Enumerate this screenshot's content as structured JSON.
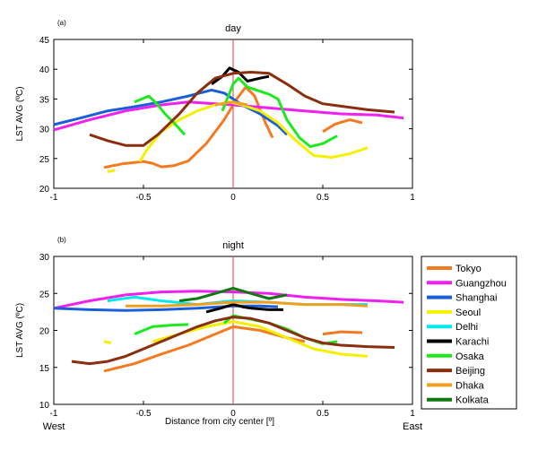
{
  "chart_data": [
    {
      "type": "line",
      "panel_label": "(a)",
      "title": "day",
      "ylabel": "LST AVG (ºC)",
      "xlabel": "",
      "xlim": [
        -1,
        1
      ],
      "ylim": [
        20,
        45
      ],
      "xticks": [
        "-1",
        "-0.5",
        "0",
        "0.5",
        "1"
      ],
      "yticks": [
        "20",
        "25",
        "30",
        "35",
        "40",
        "45"
      ],
      "vline_x": 0,
      "series": [
        {
          "name": "Tokyo",
          "color": "#f47a22",
          "segments": [
            [
              [
                -0.72,
                23.5
              ],
              [
                -0.62,
                24.1
              ],
              [
                -0.5,
                24.5
              ],
              [
                -0.45,
                24.2
              ],
              [
                -0.4,
                23.6
              ],
              [
                -0.33,
                23.8
              ],
              [
                -0.25,
                24.6
              ],
              [
                -0.15,
                27.5
              ],
              [
                -0.05,
                31.5
              ],
              [
                0.02,
                35
              ],
              [
                0.07,
                37
              ],
              [
                0.12,
                35.5
              ],
              [
                0.18,
                31
              ],
              [
                0.22,
                28.5
              ]
            ],
            [
              [
                0.5,
                29.5
              ],
              [
                0.57,
                30.8
              ],
              [
                0.65,
                31.5
              ],
              [
                0.72,
                31
              ]
            ]
          ]
        },
        {
          "name": "Guangzhou",
          "color": "#f020f0",
          "segments": [
            [
              [
                -1,
                29.8
              ],
              [
                -0.8,
                31.5
              ],
              [
                -0.6,
                33
              ],
              [
                -0.4,
                34
              ],
              [
                -0.25,
                34.5
              ],
              [
                -0.1,
                34.2
              ],
              [
                0,
                34
              ],
              [
                0.2,
                33.5
              ],
              [
                0.4,
                33
              ],
              [
                0.6,
                32.5
              ],
              [
                0.8,
                32.3
              ],
              [
                0.95,
                31.8
              ]
            ]
          ]
        },
        {
          "name": "Shanghai",
          "color": "#1a5fd8",
          "segments": [
            [
              [
                -1,
                30.7
              ],
              [
                -0.85,
                31.8
              ],
              [
                -0.7,
                33
              ],
              [
                -0.55,
                33.7
              ],
              [
                -0.4,
                34.5
              ],
              [
                -0.25,
                35.5
              ],
              [
                -0.12,
                36.5
              ],
              [
                -0.05,
                36
              ],
              [
                0.05,
                34
              ],
              [
                0.15,
                32.5
              ],
              [
                0.25,
                30.5
              ],
              [
                0.3,
                29
              ]
            ]
          ]
        },
        {
          "name": "Seoul",
          "color": "#f5f000",
          "segments": [
            [
              [
                -0.7,
                22.8
              ],
              [
                -0.66,
                23
              ]
            ],
            [
              [
                -0.52,
                24.5
              ],
              [
                -0.48,
                26.5
              ],
              [
                -0.4,
                29.5
              ],
              [
                -0.3,
                31.5
              ],
              [
                -0.2,
                33
              ],
              [
                -0.1,
                34
              ],
              [
                -0.02,
                34.5
              ],
              [
                0.05,
                34
              ],
              [
                0.15,
                33
              ],
              [
                0.25,
                31
              ],
              [
                0.35,
                28
              ],
              [
                0.45,
                25.5
              ],
              [
                0.55,
                25.2
              ],
              [
                0.65,
                25.8
              ],
              [
                0.75,
                26.8
              ]
            ]
          ]
        },
        {
          "name": "Delhi",
          "color": "#00e8f0",
          "segments": []
        },
        {
          "name": "Karachi",
          "color": "#000000",
          "segments": [
            [
              [
                -0.12,
                37.5
              ],
              [
                -0.06,
                38.8
              ],
              [
                -0.02,
                40.2
              ],
              [
                0.03,
                39.5
              ],
              [
                0.08,
                38
              ],
              [
                0.15,
                38.5
              ],
              [
                0.2,
                38.8
              ]
            ]
          ]
        },
        {
          "name": "Osaka",
          "color": "#1ee81e",
          "segments": [
            [
              [
                -0.55,
                34.5
              ],
              [
                -0.47,
                35.5
              ],
              [
                -0.42,
                34
              ],
              [
                -0.38,
                32.5
              ],
              [
                -0.33,
                31
              ],
              [
                -0.27,
                29
              ]
            ],
            [
              [
                -0.06,
                33
              ],
              [
                0,
                37.5
              ],
              [
                0.03,
                38.5
              ],
              [
                0.08,
                37
              ],
              [
                0.13,
                36.5
              ],
              [
                0.2,
                35.8
              ],
              [
                0.25,
                35
              ],
              [
                0.3,
                31.5
              ],
              [
                0.37,
                28.5
              ],
              [
                0.43,
                27
              ],
              [
                0.5,
                27.5
              ],
              [
                0.58,
                28.8
              ]
            ]
          ]
        },
        {
          "name": "Beijing",
          "color": "#8b2e0f",
          "segments": [
            [
              [
                -0.8,
                29
              ],
              [
                -0.7,
                28
              ],
              [
                -0.6,
                27.2
              ],
              [
                -0.5,
                27.2
              ],
              [
                -0.42,
                29
              ],
              [
                -0.3,
                32.5
              ],
              [
                -0.2,
                36
              ],
              [
                -0.1,
                38.5
              ],
              [
                0,
                39.3
              ],
              [
                0.1,
                39.5
              ],
              [
                0.2,
                39.3
              ],
              [
                0.3,
                37.5
              ],
              [
                0.4,
                35.5
              ],
              [
                0.5,
                34.2
              ],
              [
                0.6,
                33.8
              ],
              [
                0.75,
                33.2
              ],
              [
                0.9,
                32.8
              ]
            ]
          ]
        },
        {
          "name": "Dhaka",
          "color": "#f0a020",
          "segments": [
            [
              [
                -0.1,
                34
              ],
              [
                0,
                34.5
              ],
              [
                0.08,
                34
              ]
            ]
          ]
        },
        {
          "name": "Kolkata",
          "color": "#107810",
          "segments": []
        }
      ]
    },
    {
      "type": "line",
      "panel_label": "(b)",
      "title": "night",
      "ylabel": "LST AVG (ºC)",
      "xlabel": "Distance from city center [º]",
      "x_left_label": "West",
      "x_right_label": "East",
      "xlim": [
        -1,
        1
      ],
      "ylim": [
        10,
        30
      ],
      "xticks": [
        "-1",
        "-0.5",
        "0",
        "0.5",
        "1"
      ],
      "yticks": [
        "10",
        "15",
        "20",
        "25",
        "30"
      ],
      "vline_x": 0,
      "series": [
        {
          "name": "Tokyo",
          "color": "#f47a22",
          "segments": [
            [
              [
                -0.72,
                14.5
              ],
              [
                -0.55,
                15.5
              ],
              [
                -0.4,
                16.8
              ],
              [
                -0.25,
                18
              ],
              [
                -0.1,
                19.5
              ],
              [
                0,
                20.5
              ],
              [
                0.15,
                20
              ],
              [
                0.3,
                19
              ],
              [
                0.4,
                18.5
              ]
            ],
            [
              [
                0.5,
                19.5
              ],
              [
                0.6,
                19.8
              ],
              [
                0.72,
                19.7
              ]
            ]
          ]
        },
        {
          "name": "Guangzhou",
          "color": "#f020f0",
          "segments": [
            [
              [
                -1,
                23
              ],
              [
                -0.8,
                24
              ],
              [
                -0.6,
                24.8
              ],
              [
                -0.4,
                25.2
              ],
              [
                -0.2,
                25.3
              ],
              [
                0,
                25.2
              ],
              [
                0.2,
                25
              ],
              [
                0.4,
                24.5
              ],
              [
                0.6,
                24.2
              ],
              [
                0.8,
                24
              ],
              [
                0.95,
                23.8
              ]
            ]
          ]
        },
        {
          "name": "Shanghai",
          "color": "#1a5fd8",
          "segments": [
            [
              [
                -1,
                23
              ],
              [
                -0.8,
                22.8
              ],
              [
                -0.6,
                22.7
              ],
              [
                -0.4,
                22.8
              ],
              [
                -0.2,
                23
              ],
              [
                0,
                23.3
              ],
              [
                0.15,
                23.3
              ],
              [
                0.25,
                23.2
              ]
            ]
          ]
        },
        {
          "name": "Seoul",
          "color": "#f5f000",
          "segments": [
            [
              [
                -0.72,
                18.5
              ],
              [
                -0.68,
                18.3
              ]
            ],
            [
              [
                -0.45,
                18.5
              ],
              [
                -0.3,
                19.5
              ],
              [
                -0.15,
                20.5
              ],
              [
                0,
                21.2
              ],
              [
                0.15,
                20.5
              ],
              [
                0.3,
                19
              ],
              [
                0.45,
                17.5
              ],
              [
                0.6,
                16.8
              ],
              [
                0.75,
                16.5
              ]
            ]
          ]
        },
        {
          "name": "Delhi",
          "color": "#00e8f0",
          "segments": [
            [
              [
                -0.7,
                24
              ],
              [
                -0.55,
                24.5
              ],
              [
                -0.4,
                24
              ],
              [
                -0.2,
                23.5
              ],
              [
                0,
                24
              ],
              [
                0.2,
                23.8
              ],
              [
                0.4,
                23.5
              ],
              [
                0.6,
                23.5
              ],
              [
                0.75,
                23.5
              ]
            ]
          ]
        },
        {
          "name": "Karachi",
          "color": "#000000",
          "segments": [
            [
              [
                -0.15,
                22.5
              ],
              [
                -0.07,
                23
              ],
              [
                0,
                23.5
              ],
              [
                0.05,
                23.2
              ],
              [
                0.1,
                23
              ],
              [
                0.2,
                22.8
              ],
              [
                0.28,
                22.8
              ]
            ]
          ]
        },
        {
          "name": "Osaka",
          "color": "#1ee81e",
          "segments": [
            [
              [
                -0.55,
                19.5
              ],
              [
                -0.45,
                20.5
              ],
              [
                -0.35,
                20.7
              ],
              [
                -0.25,
                20.8
              ]
            ],
            [
              [
                -0.05,
                21
              ],
              [
                0,
                22
              ],
              [
                0.1,
                21.5
              ],
              [
                0.2,
                21
              ],
              [
                0.3,
                20.2
              ],
              [
                0.4,
                19
              ],
              [
                0.5,
                18.2
              ],
              [
                0.58,
                18.5
              ]
            ]
          ]
        },
        {
          "name": "Beijing",
          "color": "#8b2e0f",
          "segments": [
            [
              [
                -0.9,
                15.8
              ],
              [
                -0.8,
                15.5
              ],
              [
                -0.7,
                15.8
              ],
              [
                -0.6,
                16.5
              ],
              [
                -0.5,
                17.5
              ],
              [
                -0.4,
                18.5
              ],
              [
                -0.3,
                19.5
              ],
              [
                -0.2,
                20.5
              ],
              [
                -0.1,
                21.3
              ],
              [
                0,
                21.8
              ],
              [
                0.1,
                21.6
              ],
              [
                0.2,
                21
              ],
              [
                0.3,
                20
              ],
              [
                0.4,
                19
              ],
              [
                0.5,
                18.3
              ],
              [
                0.6,
                18
              ],
              [
                0.75,
                17.8
              ],
              [
                0.9,
                17.7
              ]
            ]
          ]
        },
        {
          "name": "Dhaka",
          "color": "#f0a020",
          "segments": [
            [
              [
                -0.6,
                23.3
              ],
              [
                -0.4,
                23.3
              ],
              [
                -0.2,
                23.5
              ],
              [
                0,
                23.8
              ],
              [
                0.2,
                23.8
              ],
              [
                0.4,
                23.5
              ],
              [
                0.6,
                23.5
              ],
              [
                0.75,
                23.3
              ]
            ]
          ]
        },
        {
          "name": "Kolkata",
          "color": "#107810",
          "segments": [
            [
              [
                -0.3,
                24
              ],
              [
                -0.2,
                24.3
              ],
              [
                -0.1,
                25
              ],
              [
                0,
                25.7
              ],
              [
                0.1,
                25
              ],
              [
                0.2,
                24.3
              ],
              [
                0.3,
                24.8
              ]
            ]
          ]
        }
      ]
    }
  ]
}
